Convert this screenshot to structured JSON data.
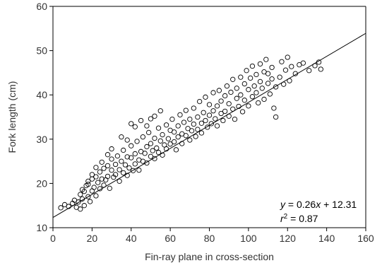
{
  "chart_data": {
    "type": "scatter",
    "title": "",
    "xlabel": "Fin-ray plane in cross-section",
    "ylabel": "Fork length (cm)",
    "xlim": [
      0,
      160
    ],
    "ylim": [
      10,
      60
    ],
    "x_ticks": [
      "0",
      "20",
      "40",
      "60",
      "80",
      "100",
      "120",
      "140",
      "160"
    ],
    "y_ticks": [
      "10",
      "20",
      "30",
      "40",
      "50",
      "60"
    ],
    "grid": false,
    "legend": "none",
    "marker": "open-circle",
    "fit_line": {
      "slope": 0.26,
      "intercept": 12.31,
      "x_range": [
        0,
        160
      ]
    },
    "annotation": {
      "eq_var_y": "y",
      "eq_mid": " = 0.26",
      "eq_var_x": "x",
      "eq_tail": " + 12.31",
      "r2_var": "r",
      "r2_exp": "2",
      "r2_tail": " = 0.87"
    },
    "series": [
      {
        "points": [
          [
            4,
            14.5
          ],
          [
            6,
            15.2
          ],
          [
            8,
            14.8
          ],
          [
            10,
            15.5
          ],
          [
            11,
            16.2
          ],
          [
            12,
            14.6
          ],
          [
            13,
            15.8
          ],
          [
            14,
            14.2
          ],
          [
            14,
            17.5
          ],
          [
            15,
            16.5
          ],
          [
            16,
            18.2
          ],
          [
            16,
            15.0
          ],
          [
            17,
            19.5
          ],
          [
            18,
            17.0
          ],
          [
            18,
            20.5
          ],
          [
            19,
            15.9
          ],
          [
            20,
            22.0
          ],
          [
            20,
            18.3
          ],
          [
            21,
            19.1
          ],
          [
            22,
            21.5
          ],
          [
            22,
            17.2
          ],
          [
            23,
            20.2
          ],
          [
            24,
            22.6
          ],
          [
            24,
            18.8
          ],
          [
            25,
            21.0
          ],
          [
            26,
            23.4
          ],
          [
            26,
            19.6
          ],
          [
            27,
            20.8
          ],
          [
            28,
            24.0
          ],
          [
            28,
            21.6
          ],
          [
            29,
            18.9
          ],
          [
            30,
            23.0
          ],
          [
            30,
            25.5
          ],
          [
            31,
            21.4
          ],
          [
            32,
            24.3
          ],
          [
            32,
            22.0
          ],
          [
            33,
            26.2
          ],
          [
            34,
            23.1
          ],
          [
            34,
            20.5
          ],
          [
            35,
            25.0
          ],
          [
            36,
            22.4
          ],
          [
            36,
            27.5
          ],
          [
            37,
            24.2
          ],
          [
            38,
            21.8
          ],
          [
            38,
            26.0
          ],
          [
            39,
            23.5
          ],
          [
            40,
            25.8
          ],
          [
            40,
            28.5
          ],
          [
            41,
            22.9
          ],
          [
            42,
            26.7
          ],
          [
            42,
            24.4
          ],
          [
            43,
            29.5
          ],
          [
            44,
            25.3
          ],
          [
            44,
            23.0
          ],
          [
            45,
            27.2
          ],
          [
            46,
            30.5
          ],
          [
            46,
            25.0
          ],
          [
            47,
            26.8
          ],
          [
            48,
            24.6
          ],
          [
            48,
            28.3
          ],
          [
            49,
            31.5
          ],
          [
            50,
            26.1
          ],
          [
            50,
            29.0
          ],
          [
            51,
            27.4
          ],
          [
            52,
            25.6
          ],
          [
            52,
            30.2
          ],
          [
            53,
            28.0
          ],
          [
            54,
            32.5
          ],
          [
            54,
            27.0
          ],
          [
            55,
            29.6
          ],
          [
            56,
            26.4
          ],
          [
            56,
            31.0
          ],
          [
            57,
            28.7
          ],
          [
            58,
            33.2
          ],
          [
            58,
            27.8
          ],
          [
            59,
            30.1
          ],
          [
            60,
            28.9
          ],
          [
            60,
            32.0
          ],
          [
            61,
            34.5
          ],
          [
            62,
            29.4
          ],
          [
            62,
            31.6
          ],
          [
            63,
            27.6
          ],
          [
            64,
            33.0
          ],
          [
            64,
            30.5
          ],
          [
            65,
            35.5
          ],
          [
            66,
            31.2
          ],
          [
            66,
            29.0
          ],
          [
            67,
            33.8
          ],
          [
            68,
            30.8
          ],
          [
            68,
            36.5
          ],
          [
            69,
            32.4
          ],
          [
            70,
            34.5
          ],
          [
            70,
            29.8
          ],
          [
            71,
            31.9
          ],
          [
            72,
            37.0
          ],
          [
            72,
            33.4
          ],
          [
            73,
            30.6
          ],
          [
            74,
            35.0
          ],
          [
            74,
            32.2
          ],
          [
            75,
            38.5
          ],
          [
            76,
            33.6
          ],
          [
            76,
            31.4
          ],
          [
            77,
            36.0
          ],
          [
            78,
            34.2
          ],
          [
            78,
            39.5
          ],
          [
            79,
            32.7
          ],
          [
            80,
            35.4
          ],
          [
            80,
            37.8
          ],
          [
            81,
            33.5
          ],
          [
            82,
            36.4
          ],
          [
            82,
            40.5
          ],
          [
            83,
            34.6
          ],
          [
            84,
            37.5
          ],
          [
            84,
            33.0
          ],
          [
            85,
            41.0
          ],
          [
            86,
            35.8
          ],
          [
            86,
            38.6
          ],
          [
            87,
            34.2
          ],
          [
            88,
            39.8
          ],
          [
            88,
            36.3
          ],
          [
            89,
            42.0
          ],
          [
            90,
            35.2
          ],
          [
            90,
            38.0
          ],
          [
            91,
            40.6
          ],
          [
            92,
            36.8
          ],
          [
            92,
            43.5
          ],
          [
            93,
            34.5
          ],
          [
            94,
            39.2
          ],
          [
            94,
            41.5
          ],
          [
            95,
            37.4
          ],
          [
            96,
            44.0
          ],
          [
            96,
            40.0
          ],
          [
            97,
            36.2
          ],
          [
            98,
            42.5
          ],
          [
            98,
            38.8
          ],
          [
            99,
            45.5
          ],
          [
            100,
            41.2
          ],
          [
            100,
            37.5
          ],
          [
            101,
            43.8
          ],
          [
            102,
            39.6
          ],
          [
            102,
            46.5
          ],
          [
            103,
            42.0
          ],
          [
            104,
            40.5
          ],
          [
            104,
            44.6
          ],
          [
            105,
            38.2
          ],
          [
            106,
            47.0
          ],
          [
            106,
            43.0
          ],
          [
            107,
            41.5
          ],
          [
            108,
            45.2
          ],
          [
            108,
            39.0
          ],
          [
            109,
            48.0
          ],
          [
            110,
            42.6
          ],
          [
            110,
            44.8
          ],
          [
            111,
            40.2
          ],
          [
            112,
            46.2
          ],
          [
            112,
            43.6
          ],
          [
            113,
            37.0
          ],
          [
            114,
            41.8
          ],
          [
            114,
            35.0
          ],
          [
            116,
            44.0
          ],
          [
            117,
            47.5
          ],
          [
            118,
            42.4
          ],
          [
            119,
            45.6
          ],
          [
            120,
            48.5
          ],
          [
            121,
            43.2
          ],
          [
            122,
            46.4
          ],
          [
            124,
            44.8
          ],
          [
            126,
            46.8
          ],
          [
            128,
            47.2
          ],
          [
            131,
            45.5
          ],
          [
            134,
            46.6
          ],
          [
            136,
            47.4
          ],
          [
            137,
            45.8
          ],
          [
            40,
            33.5
          ],
          [
            42,
            32.8
          ],
          [
            45,
            34.2
          ],
          [
            48,
            33.0
          ],
          [
            35,
            30.5
          ],
          [
            38,
            29.8
          ],
          [
            30,
            27.8
          ],
          [
            28,
            26.5
          ],
          [
            25,
            24.8
          ],
          [
            22,
            23.6
          ],
          [
            20,
            21.0
          ],
          [
            18,
            19.8
          ],
          [
            15,
            18.6
          ],
          [
            50,
            34.6
          ],
          [
            52,
            35.2
          ],
          [
            55,
            36.4
          ]
        ]
      }
    ]
  }
}
